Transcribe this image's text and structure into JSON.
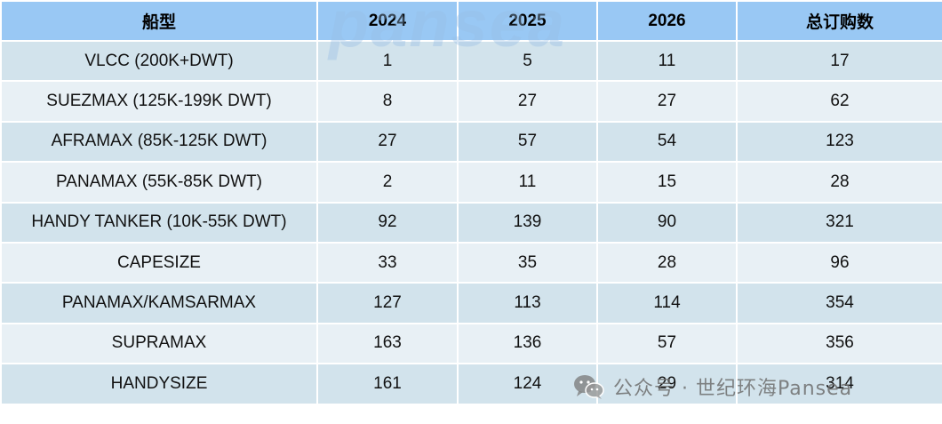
{
  "table": {
    "headers": [
      "船型",
      "2024",
      "2025",
      "2026",
      "总订购数"
    ],
    "rows": [
      [
        "VLCC (200K+DWT)",
        "1",
        "5",
        "11",
        "17"
      ],
      [
        "SUEZMAX (125K-199K DWT)",
        "8",
        "27",
        "27",
        "62"
      ],
      [
        "AFRAMAX (85K-125K DWT)",
        "27",
        "57",
        "54",
        "123"
      ],
      [
        "PANAMAX (55K-85K DWT)",
        "2",
        "11",
        "15",
        "28"
      ],
      [
        "HANDY TANKER (10K-55K DWT)",
        "92",
        "139",
        "90",
        "321"
      ],
      [
        "CAPESIZE",
        "33",
        "35",
        "28",
        "96"
      ],
      [
        "PANAMAX/KAMSARMAX",
        "127",
        "113",
        "114",
        "354"
      ],
      [
        "SUPRAMAX",
        "163",
        "136",
        "57",
        "356"
      ],
      [
        "HANDYSIZE",
        "161",
        "124",
        "29",
        "314"
      ]
    ]
  },
  "watermarks": {
    "background_logo": "pansea",
    "wechat_text": "公众号 · 世纪环海Pansea",
    "wechat_icon": "wechat-icon"
  },
  "colors": {
    "header_bg": "#99c8f4",
    "row_dark": "#d2e3ec",
    "row_light": "#e8f0f5"
  }
}
